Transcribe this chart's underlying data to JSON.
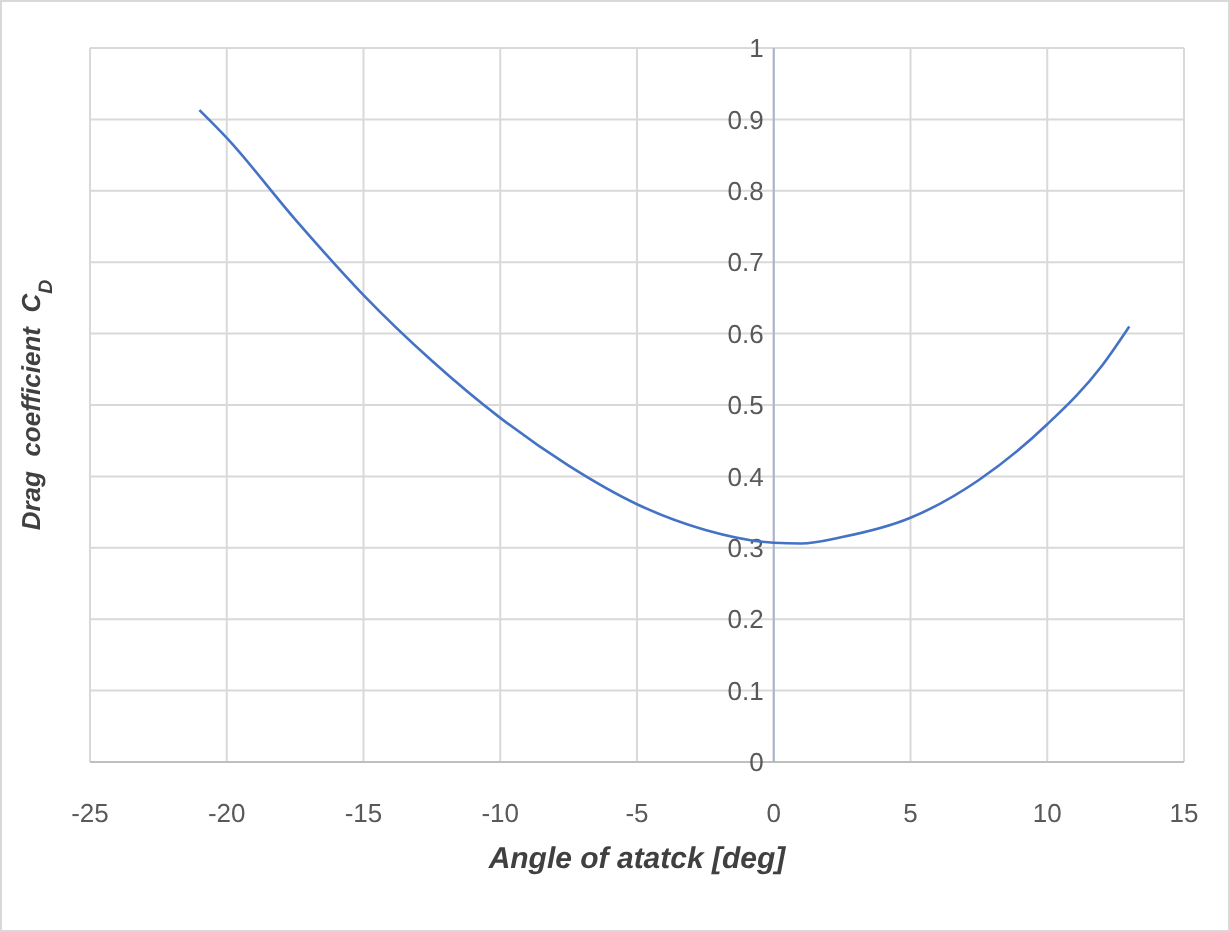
{
  "chart_data": {
    "type": "line",
    "xlabel": "Angle of atatck [deg]",
    "ylabel": "Drag  coefficient  C$_{D}$",
    "x": [
      -21,
      -20,
      -17.5,
      -15,
      -12.5,
      -10,
      -7.5,
      -5,
      -2.5,
      0,
      1,
      2.5,
      5,
      7.5,
      10,
      12,
      13
    ],
    "series": [
      {
        "color": "#4472c4",
        "values": [
          0.913,
          0.874,
          0.76,
          0.654,
          0.562,
          0.482,
          0.415,
          0.361,
          0.325,
          0.307,
          0.306,
          0.315,
          0.342,
          0.395,
          0.473,
          0.555,
          0.61
        ]
      }
    ],
    "xlim": [
      -25,
      15
    ],
    "xticks": [
      -25,
      -20,
      -15,
      -10,
      -5,
      0,
      5,
      10,
      15
    ],
    "ylim": [
      0,
      1
    ],
    "yticks": [
      0,
      0.1,
      0.2,
      0.3,
      0.4,
      0.5,
      0.6,
      0.7,
      0.8,
      0.9,
      1
    ],
    "grid": true,
    "marker": "none",
    "line_style": "solid"
  }
}
